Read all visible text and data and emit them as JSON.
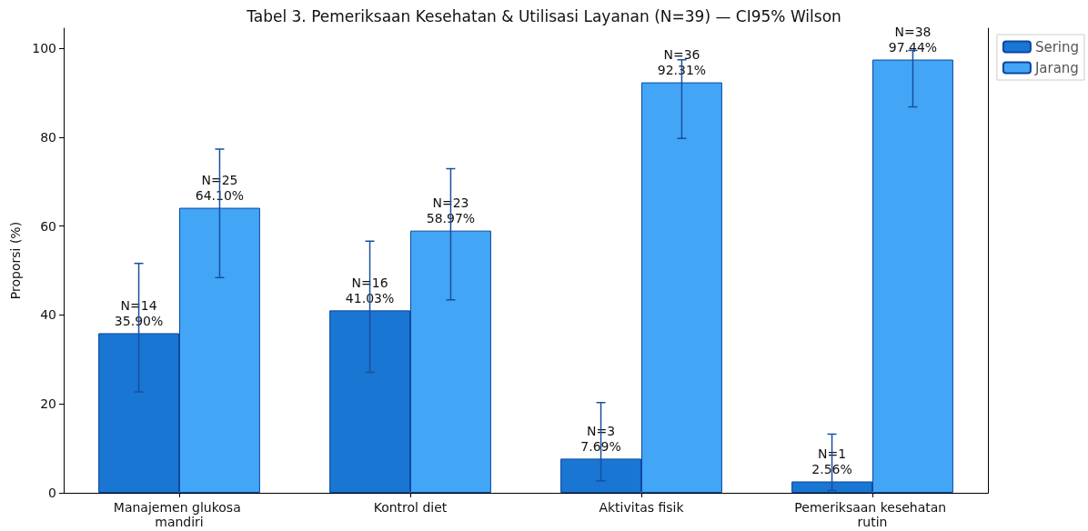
{
  "chart_data": {
    "type": "bar",
    "title": "Tabel 3. Pemeriksaan Kesehatan & Utilisasi Layanan (N=39) — CI95% Wilson",
    "ylabel": "Proporsi (%)",
    "categories": [
      "Manajemen glukosa mandiri",
      "Kontrol diet",
      "Aktivitas fisik",
      "Pemeriksaan kesehatan rutin"
    ],
    "series": [
      {
        "name": "Sering",
        "color": "#1976d2",
        "values": [
          35.9,
          41.03,
          7.69,
          2.56
        ],
        "errors": [
          [
            22.7,
            51.6
          ],
          [
            27.1,
            56.6
          ],
          [
            2.7,
            20.3
          ],
          [
            0.5,
            13.2
          ]
        ],
        "value_labels": [
          "N=14\n35.90%",
          "N=16\n41.03%",
          "N=3\n7.69%",
          "N=1\n2.56%"
        ]
      },
      {
        "name": "Jarang",
        "color": "#42a5f5",
        "values": [
          64.1,
          58.97,
          92.31,
          97.44
        ],
        "errors": [
          [
            48.4,
            77.3
          ],
          [
            43.4,
            72.9
          ],
          [
            79.7,
            97.4
          ],
          [
            86.8,
            99.5
          ]
        ],
        "value_labels": [
          "N=25\n64.10%",
          "N=23\n58.97%",
          "N=36\n92.31%",
          "N=38\n97.44%"
        ]
      }
    ],
    "ylim": [
      0,
      104.5
    ],
    "yticks": [
      0,
      20,
      40,
      60,
      80,
      100
    ],
    "grid": false,
    "legend": "top right"
  }
}
